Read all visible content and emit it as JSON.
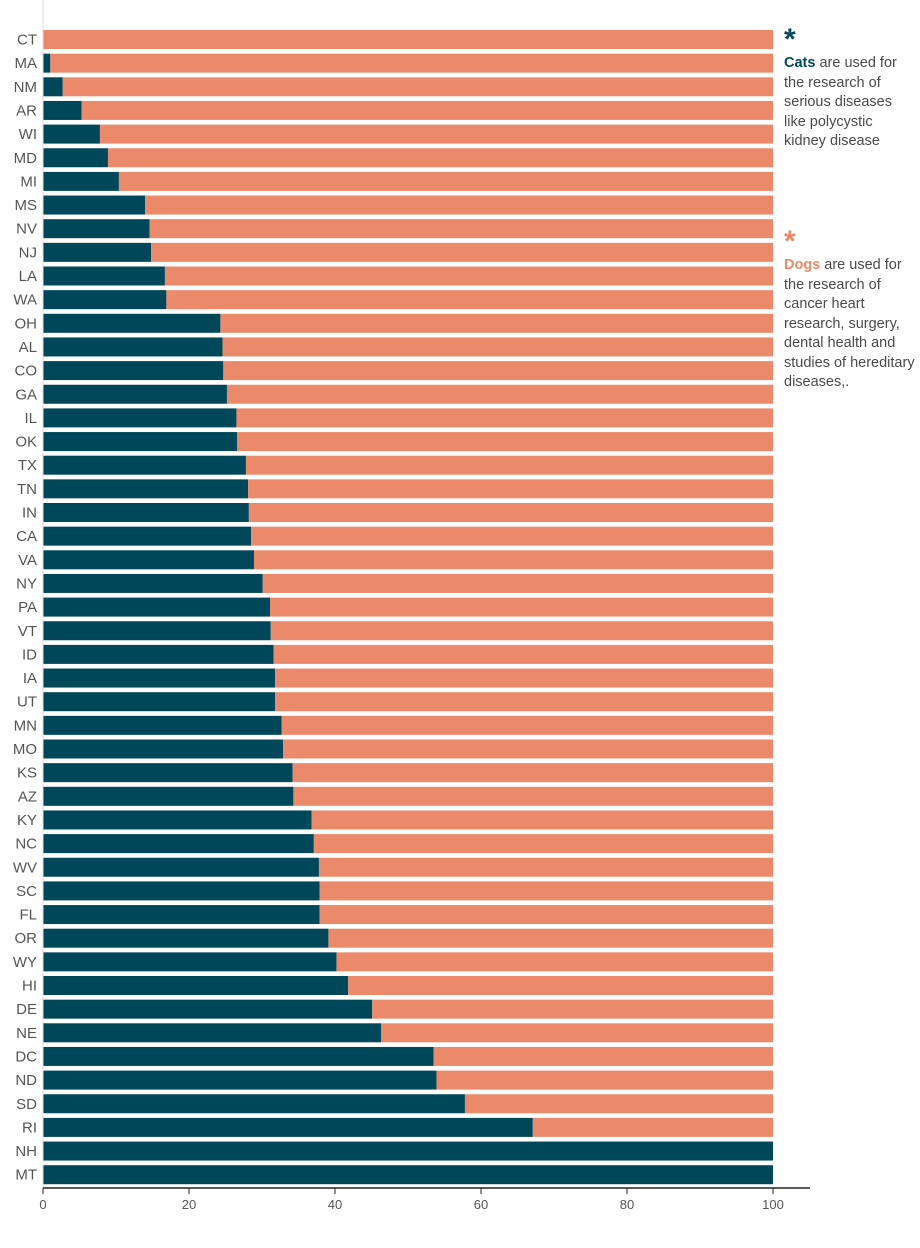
{
  "chart_data": {
    "type": "bar",
    "stacked": true,
    "orientation": "horizontal",
    "categories": [
      "CT",
      "MA",
      "NM",
      "AR",
      "WI",
      "MD",
      "MI",
      "MS",
      "NV",
      "NJ",
      "LA",
      "WA",
      "OH",
      "AL",
      "CO",
      "GA",
      "IL",
      "OK",
      "TX",
      "TN",
      "IN",
      "CA",
      "VA",
      "NY",
      "PA",
      "VT",
      "ID",
      "IA",
      "UT",
      "MN",
      "MO",
      "KS",
      "AZ",
      "KY",
      "NC",
      "WV",
      "SC",
      "FL",
      "OR",
      "WY",
      "HI",
      "DE",
      "NE",
      "DC",
      "ND",
      "SD",
      "RI",
      "NH",
      "MT"
    ],
    "series": [
      {
        "values": [
          0,
          1,
          2.7,
          5.3,
          7.8,
          8.9,
          10.4,
          14,
          14.6,
          14.8,
          16.7,
          16.9,
          24.3,
          24.6,
          24.7,
          25.2,
          26.5,
          26.6,
          27.8,
          28.1,
          28.2,
          28.5,
          28.9,
          30.1,
          31.1,
          31.2,
          31.6,
          31.8,
          31.8,
          32.7,
          32.9,
          34.2,
          34.3,
          36.8,
          37.1,
          37.8,
          37.9,
          37.9,
          39.1,
          40.2,
          41.8,
          45.1,
          46.3,
          53.5,
          53.9,
          57.8,
          67.1,
          100,
          100
        ]
      },
      {
        "values": [
          100,
          99,
          97.3,
          94.7,
          92.2,
          91.1,
          89.6,
          86,
          85.4,
          85.2,
          83.3,
          83.1,
          75.7,
          75.4,
          75.3,
          74.8,
          73.5,
          73.4,
          72.2,
          71.9,
          71.8,
          71.5,
          71.1,
          69.9,
          68.9,
          68.8,
          68.4,
          68.2,
          68.2,
          67.3,
          67.1,
          65.8,
          65.7,
          63.2,
          62.9,
          62.2,
          62.1,
          62.1,
          60.9,
          59.8,
          58.2,
          54.9,
          53.7,
          46.5,
          46.1,
          42.2,
          32.9,
          0,
          0
        ]
      }
    ],
    "colors": {
      "cats": "#00475a",
      "dogs": "#eb8a6b"
    },
    "xlim": [
      0,
      100
    ],
    "xticks": [
      0,
      20,
      40,
      60,
      80,
      100
    ],
    "grid": false,
    "xlabel": "",
    "ylabel": "",
    "title": ""
  },
  "annotations": {
    "cats": {
      "star": "*",
      "keyword": "Cats",
      "text": " are used for the research  of serious diseases like polycystic kidney disease",
      "color": "#00475a"
    },
    "dogs": {
      "star": "*",
      "keyword": "Dogs",
      "text": " are used for the research of cancer heart research, surgery, dental health and studies of hereditary diseases,.",
      "color": "#eb8a6b"
    }
  }
}
